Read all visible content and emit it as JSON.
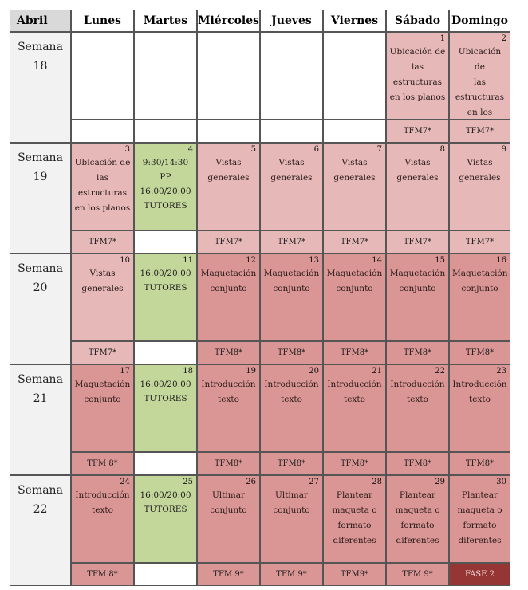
{
  "month_label": "Abril",
  "day_headers": [
    "Lunes",
    "Martes",
    "Miércoles",
    "Jueves",
    "Viernes",
    "Sábado",
    "Domingo"
  ],
  "colors": {
    "pink": "#e6b8b7",
    "rose": "#da9694",
    "green": "#c4d79b",
    "darkred": "#963634",
    "white": "#ffffff",
    "header_gray": "#d9d9d9"
  },
  "weeks": [
    {
      "label": "Semana\n18",
      "days": [
        {
          "num": "",
          "text": "",
          "color": "white"
        },
        {
          "num": "",
          "text": "",
          "color": "white"
        },
        {
          "num": "",
          "text": "",
          "color": "white"
        },
        {
          "num": "",
          "text": "",
          "color": "white"
        },
        {
          "num": "",
          "text": "",
          "color": "white"
        },
        {
          "num": "1",
          "text": "Ubicación de\nlas estructuras\nen los planos",
          "color": "pink"
        },
        {
          "num": "2",
          "text": "Ubicación de\nlas estructuras\nen los planos",
          "color": "pink"
        }
      ],
      "tfm": [
        {
          "text": "",
          "color": "white"
        },
        {
          "text": "",
          "color": "white"
        },
        {
          "text": "",
          "color": "white"
        },
        {
          "text": "",
          "color": "white"
        },
        {
          "text": "",
          "color": "white"
        },
        {
          "text": "TFM7*",
          "color": "pink"
        },
        {
          "text": "TFM7*",
          "color": "pink"
        }
      ]
    },
    {
      "label": "Semana\n19",
      "days": [
        {
          "num": "3",
          "text": "Ubicación de\nlas estructuras\nen los planos",
          "color": "pink"
        },
        {
          "num": "4",
          "text": "9:30/14:30\nPP\n16:00/20:00\nTUTORES",
          "color": "green"
        },
        {
          "num": "5",
          "text": "Vistas\ngenerales",
          "color": "pink"
        },
        {
          "num": "6",
          "text": "Vistas\ngenerales",
          "color": "pink"
        },
        {
          "num": "7",
          "text": "Vistas\ngenerales",
          "color": "pink"
        },
        {
          "num": "8",
          "text": "Vistas\ngenerales",
          "color": "pink"
        },
        {
          "num": "9",
          "text": "Vistas\ngenerales",
          "color": "pink"
        }
      ],
      "tfm": [
        {
          "text": "TFM7*",
          "color": "pink"
        },
        {
          "text": "",
          "color": "white"
        },
        {
          "text": "TFM7*",
          "color": "pink"
        },
        {
          "text": "TFM7*",
          "color": "pink"
        },
        {
          "text": "TFM7*",
          "color": "pink"
        },
        {
          "text": "TFM7*",
          "color": "pink"
        },
        {
          "text": "TFM7*",
          "color": "pink"
        }
      ]
    },
    {
      "label": "Semana\n20",
      "days": [
        {
          "num": "10",
          "text": "Vistas\ngenerales",
          "color": "pink"
        },
        {
          "num": "11",
          "text": "16:00/20:00\nTUTORES",
          "color": "green"
        },
        {
          "num": "12",
          "text": "Maquetación\nconjunto",
          "color": "rose"
        },
        {
          "num": "13",
          "text": "Maquetación\nconjunto",
          "color": "rose"
        },
        {
          "num": "14",
          "text": "Maquetación\nconjunto",
          "color": "rose"
        },
        {
          "num": "15",
          "text": "Maquetación\nconjunto",
          "color": "rose"
        },
        {
          "num": "16",
          "text": "Maquetación\nconjunto",
          "color": "rose"
        }
      ],
      "tfm": [
        {
          "text": "TFM7*",
          "color": "pink"
        },
        {
          "text": "",
          "color": "white"
        },
        {
          "text": "TFM8*",
          "color": "rose"
        },
        {
          "text": "TFM8*",
          "color": "rose"
        },
        {
          "text": "TFM8*",
          "color": "rose"
        },
        {
          "text": "TFM8*",
          "color": "rose"
        },
        {
          "text": "TFM8*",
          "color": "rose"
        }
      ]
    },
    {
      "label": "Semana\n21",
      "days": [
        {
          "num": "17",
          "text": "Maquetación\nconjunto",
          "color": "rose"
        },
        {
          "num": "18",
          "text": "16:00/20:00\nTUTORES",
          "color": "green"
        },
        {
          "num": "19",
          "text": "Introducción\ntexto",
          "color": "rose"
        },
        {
          "num": "20",
          "text": "Introducción\ntexto",
          "color": "rose"
        },
        {
          "num": "21",
          "text": "Introducción\ntexto",
          "color": "rose"
        },
        {
          "num": "22",
          "text": "Introducción\ntexto",
          "color": "rose"
        },
        {
          "num": "23",
          "text": "Introducción\ntexto",
          "color": "rose"
        }
      ],
      "tfm": [
        {
          "text": "TFM 8*",
          "color": "rose"
        },
        {
          "text": "",
          "color": "white"
        },
        {
          "text": "TFM8*",
          "color": "rose"
        },
        {
          "text": "TFM8*",
          "color": "rose"
        },
        {
          "text": "TFM8*",
          "color": "rose"
        },
        {
          "text": "TFM8*",
          "color": "rose"
        },
        {
          "text": "TFM8*",
          "color": "rose"
        }
      ]
    },
    {
      "label": "Semana\n22",
      "days": [
        {
          "num": "24",
          "text": "Introducción\ntexto",
          "color": "rose"
        },
        {
          "num": "25",
          "text": "16:00/20:00\nTUTORES",
          "color": "green"
        },
        {
          "num": "26",
          "text": "Ultimar\nconjunto",
          "color": "rose"
        },
        {
          "num": "27",
          "text": "Ultimar\nconjunto",
          "color": "rose"
        },
        {
          "num": "28",
          "text": "Plantear\nmaqueta o\nformato\ndiferentes",
          "color": "rose"
        },
        {
          "num": "29",
          "text": "Plantear\nmaqueta o\nformato\ndiferentes",
          "color": "rose"
        },
        {
          "num": "30",
          "text": "Plantear\nmaqueta o\nformato\ndiferentes",
          "color": "rose"
        }
      ],
      "tfm": [
        {
          "text": "TFM 8*",
          "color": "rose"
        },
        {
          "text": "",
          "color": "white"
        },
        {
          "text": "TFM 9*",
          "color": "rose"
        },
        {
          "text": "TFM 9*",
          "color": "rose"
        },
        {
          "text": "TFM9*",
          "color": "rose"
        },
        {
          "text": "TFM 9*",
          "color": "rose"
        },
        {
          "text": "FASE 2",
          "color": "darkred"
        }
      ]
    }
  ]
}
